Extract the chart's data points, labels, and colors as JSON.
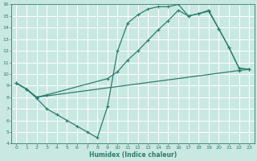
{
  "xlabel": "Humidex (Indice chaleur)",
  "xlim": [
    -0.5,
    23.5
  ],
  "ylim": [
    4,
    16
  ],
  "xticks": [
    0,
    1,
    2,
    3,
    4,
    5,
    6,
    7,
    8,
    9,
    10,
    11,
    12,
    13,
    14,
    15,
    16,
    17,
    18,
    19,
    20,
    21,
    22,
    23
  ],
  "yticks": [
    4,
    5,
    6,
    7,
    8,
    9,
    10,
    11,
    12,
    13,
    14,
    15,
    16
  ],
  "bg_color": "#c9e8e2",
  "grid_color": "#b0d8d0",
  "line_color": "#2e7d6e",
  "line1_x": [
    0,
    1,
    2,
    3,
    4,
    5,
    6,
    7,
    8,
    9,
    10,
    11,
    12,
    13,
    14,
    15,
    16,
    17,
    18,
    19,
    20,
    21,
    22,
    23
  ],
  "line1_y": [
    9.2,
    8.7,
    7.9,
    7.0,
    6.5,
    6.0,
    5.5,
    5.0,
    4.5,
    7.2,
    12.0,
    14.4,
    15.1,
    15.6,
    15.8,
    15.8,
    16.0,
    15.0,
    15.2,
    15.5,
    13.9,
    12.3,
    10.5,
    10.4
  ],
  "line2_x": [
    0,
    1,
    2,
    22,
    23
  ],
  "line2_y": [
    9.2,
    8.7,
    8.0,
    10.3,
    10.4
  ],
  "line3_x": [
    0,
    1,
    2,
    3,
    9,
    10,
    11,
    12,
    13,
    14,
    15,
    16,
    17,
    18,
    19,
    20,
    21,
    22,
    23
  ],
  "line3_y": [
    9.2,
    8.7,
    8.0,
    8.2,
    9.6,
    10.2,
    11.2,
    12.0,
    12.9,
    13.8,
    14.6,
    15.5,
    15.0,
    15.2,
    15.4,
    13.9,
    12.3,
    10.5,
    10.4
  ]
}
